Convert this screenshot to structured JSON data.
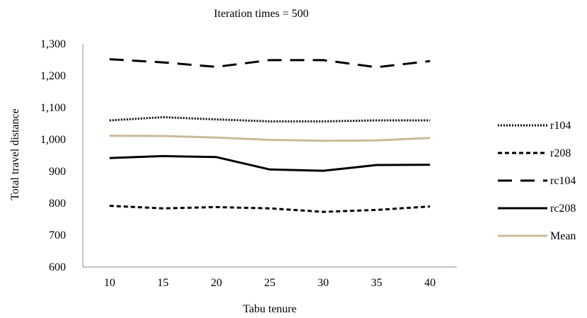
{
  "chart_data": {
    "type": "line",
    "title": "Iteration times = 500",
    "xlabel": "Tabu tenure",
    "ylabel": "Total travel distance",
    "categories": [
      "10",
      "15",
      "20",
      "25",
      "30",
      "35",
      "40"
    ],
    "ylim": [
      600,
      1300
    ],
    "y_ticks": [
      600,
      700,
      800,
      900,
      1000,
      1100,
      1200,
      1300
    ],
    "y_tick_labels": [
      "600",
      "700",
      "800",
      "900",
      "1,000",
      "1,100",
      "1,200",
      "1,300"
    ],
    "grid": false,
    "legend_position": "right",
    "series": [
      {
        "name": "r104",
        "values": [
          1060,
          1070,
          1063,
          1057,
          1057,
          1060,
          1060
        ],
        "color": "#000000",
        "style": "dotted"
      },
      {
        "name": "r208",
        "values": [
          792,
          784,
          788,
          784,
          773,
          779,
          790
        ],
        "color": "#000000",
        "style": "dashed"
      },
      {
        "name": "rc104",
        "values": [
          1252,
          1242,
          1228,
          1249,
          1249,
          1227,
          1246
        ],
        "color": "#000000",
        "style": "longdash"
      },
      {
        "name": "rc208",
        "values": [
          942,
          948,
          945,
          906,
          902,
          920,
          921
        ],
        "color": "#000000",
        "style": "solid"
      },
      {
        "name": "Mean",
        "values": [
          1012,
          1011,
          1006,
          999,
          996,
          997,
          1005
        ],
        "color": "#c8bb9a",
        "style": "solid"
      }
    ]
  }
}
